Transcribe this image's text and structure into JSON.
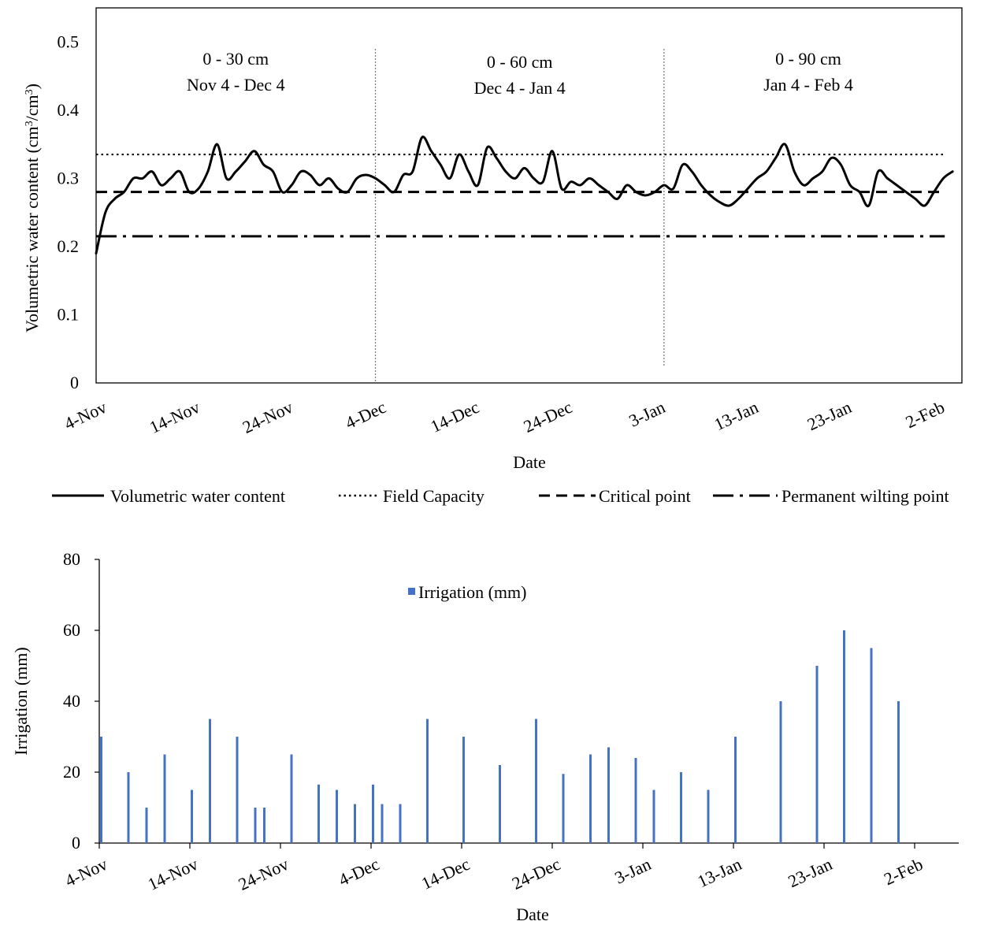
{
  "chart_data": [
    {
      "type": "line",
      "xlabel": "Date",
      "ylabel": "Volumetric water content (cm³/cm³)",
      "ylabel_parts": [
        "Volumetric water content (cm",
        "3",
        "/cm",
        "3",
        ")"
      ],
      "x_axis": {
        "start": "2018-11-04",
        "end": "2019-02-05",
        "tick_every_days": 10
      },
      "x_ticks": [
        "4-Nov",
        "14-Nov",
        "24-Nov",
        "4-Dec",
        "14-Dec",
        "24-Dec",
        "3-Jan",
        "13-Jan",
        "23-Jan",
        "2-Feb"
      ],
      "ylim": [
        0,
        0.55
      ],
      "y_ticks": [
        "0",
        "0.1",
        "0.2",
        "0.3",
        "0.4",
        "0.5"
      ],
      "grid": false,
      "legend_position": "bottom",
      "series": [
        {
          "name": "Volumetric water content",
          "style": "solid",
          "x": [
            "2018-11-04",
            "2018-11-05",
            "2018-11-06",
            "2018-11-07",
            "2018-11-08",
            "2018-11-09",
            "2018-11-10",
            "2018-11-11",
            "2018-11-12",
            "2018-11-13",
            "2018-11-14",
            "2018-11-15",
            "2018-11-16",
            "2018-11-17",
            "2018-11-18",
            "2018-11-19",
            "2018-11-20",
            "2018-11-21",
            "2018-11-22",
            "2018-11-23",
            "2018-11-24",
            "2018-11-25",
            "2018-11-26",
            "2018-11-27",
            "2018-11-28",
            "2018-11-29",
            "2018-11-30",
            "2018-12-01",
            "2018-12-02",
            "2018-12-03",
            "2018-12-04",
            "2018-12-05",
            "2018-12-06",
            "2018-12-07",
            "2018-12-08",
            "2018-12-09",
            "2018-12-10",
            "2018-12-11",
            "2018-12-12",
            "2018-12-13",
            "2018-12-14",
            "2018-12-15",
            "2018-12-16",
            "2018-12-17",
            "2018-12-18",
            "2018-12-19",
            "2018-12-20",
            "2018-12-21",
            "2018-12-22",
            "2018-12-23",
            "2018-12-24",
            "2018-12-25",
            "2018-12-26",
            "2018-12-27",
            "2018-12-28",
            "2018-12-29",
            "2018-12-30",
            "2018-12-31",
            "2019-01-01",
            "2019-01-02",
            "2019-01-03",
            "2019-01-04",
            "2019-01-05",
            "2019-01-06",
            "2019-01-07",
            "2019-01-08",
            "2019-01-09",
            "2019-01-10",
            "2019-01-11",
            "2019-01-12",
            "2019-01-13",
            "2019-01-14",
            "2019-01-15",
            "2019-01-16",
            "2019-01-17",
            "2019-01-18",
            "2019-01-19",
            "2019-01-20",
            "2019-01-21",
            "2019-01-22",
            "2019-01-23",
            "2019-01-24",
            "2019-01-25",
            "2019-01-26",
            "2019-01-27",
            "2019-01-28",
            "2019-01-29",
            "2019-01-30",
            "2019-01-31",
            "2019-02-01",
            "2019-02-02",
            "2019-02-03",
            "2019-02-04"
          ],
          "values": [
            0.19,
            0.25,
            0.27,
            0.28,
            0.3,
            0.3,
            0.31,
            0.29,
            0.3,
            0.31,
            0.28,
            0.285,
            0.31,
            0.35,
            0.3,
            0.31,
            0.325,
            0.34,
            0.32,
            0.31,
            0.28,
            0.29,
            0.31,
            0.305,
            0.29,
            0.3,
            0.285,
            0.28,
            0.3,
            0.305,
            0.3,
            0.29,
            0.28,
            0.305,
            0.31,
            0.36,
            0.34,
            0.32,
            0.3,
            0.335,
            0.31,
            0.29,
            0.345,
            0.33,
            0.31,
            0.3,
            0.315,
            0.3,
            0.295,
            0.34,
            0.285,
            0.295,
            0.29,
            0.3,
            0.29,
            0.28,
            0.27,
            0.29,
            0.28,
            0.275,
            0.28,
            0.29,
            0.285,
            0.32,
            0.31,
            0.29,
            0.275,
            0.265,
            0.26,
            0.27,
            0.285,
            0.3,
            0.31,
            0.33,
            0.35,
            0.31,
            0.29,
            0.3,
            0.31,
            0.33,
            0.32,
            0.29,
            0.28,
            0.26,
            0.31,
            0.3,
            0.29,
            0.28,
            0.27,
            0.26,
            0.28,
            0.3,
            0.31
          ]
        },
        {
          "name": "Field Capacity",
          "style": "dotted",
          "value": 0.335
        },
        {
          "name": "Critical point",
          "style": "dashed",
          "value": 0.28
        },
        {
          "name": "Permanent wilting point",
          "style": "dashdot",
          "value": 0.215
        }
      ],
      "zones": [
        {
          "depth": "0 - 30 cm",
          "period": "Nov 4 - Dec 4",
          "from": "2018-11-04",
          "to": "2018-12-04"
        },
        {
          "depth": "0 - 60 cm",
          "period": "Dec 4 - Jan 4",
          "from": "2018-12-04",
          "to": "2019-01-04"
        },
        {
          "depth": "0 - 90 cm",
          "period": "Jan 4 - Feb 4",
          "from": "2019-01-04",
          "to": "2019-02-04"
        }
      ]
    },
    {
      "type": "bar",
      "xlabel": "Date",
      "ylabel": "Irrigation (mm)",
      "x_axis": {
        "start": "2018-11-04",
        "end": "2019-02-04",
        "tick_every_days": 10
      },
      "x_ticks": [
        "4-Nov",
        "14-Nov",
        "24-Nov",
        "4-Dec",
        "14-Dec",
        "24-Dec",
        "3-Jan",
        "13-Jan",
        "23-Jan",
        "2-Feb"
      ],
      "ylim": [
        0,
        80
      ],
      "y_ticks": [
        "0",
        "20",
        "40",
        "60",
        "80"
      ],
      "grid": false,
      "legend_position": "top-center",
      "color": "#4472C4",
      "series": [
        {
          "name": "Irrigation (mm)",
          "x": [
            "2018-11-04",
            "2018-11-07",
            "2018-11-09",
            "2018-11-11",
            "2018-11-14",
            "2018-11-16",
            "2018-11-19",
            "2018-11-21",
            "2018-11-22",
            "2018-11-25",
            "2018-11-28",
            "2018-11-30",
            "2018-12-02",
            "2018-12-04",
            "2018-12-05",
            "2018-12-07",
            "2018-12-10",
            "2018-12-14",
            "2018-12-18",
            "2018-12-22",
            "2018-12-25",
            "2018-12-28",
            "2018-12-30",
            "2019-01-02",
            "2019-01-04",
            "2019-01-07",
            "2019-01-10",
            "2019-01-13",
            "2019-01-18",
            "2019-01-22",
            "2019-01-25",
            "2019-01-28",
            "2019-01-31"
          ],
          "values": [
            30,
            20,
            10,
            25,
            15,
            35,
            30,
            10,
            10,
            25,
            16.5,
            15,
            11,
            16.5,
            11,
            11,
            35,
            30,
            22,
            35,
            19.5,
            25,
            27,
            24,
            15,
            20,
            15,
            30,
            40,
            50,
            60,
            55,
            40
          ]
        }
      ]
    }
  ]
}
